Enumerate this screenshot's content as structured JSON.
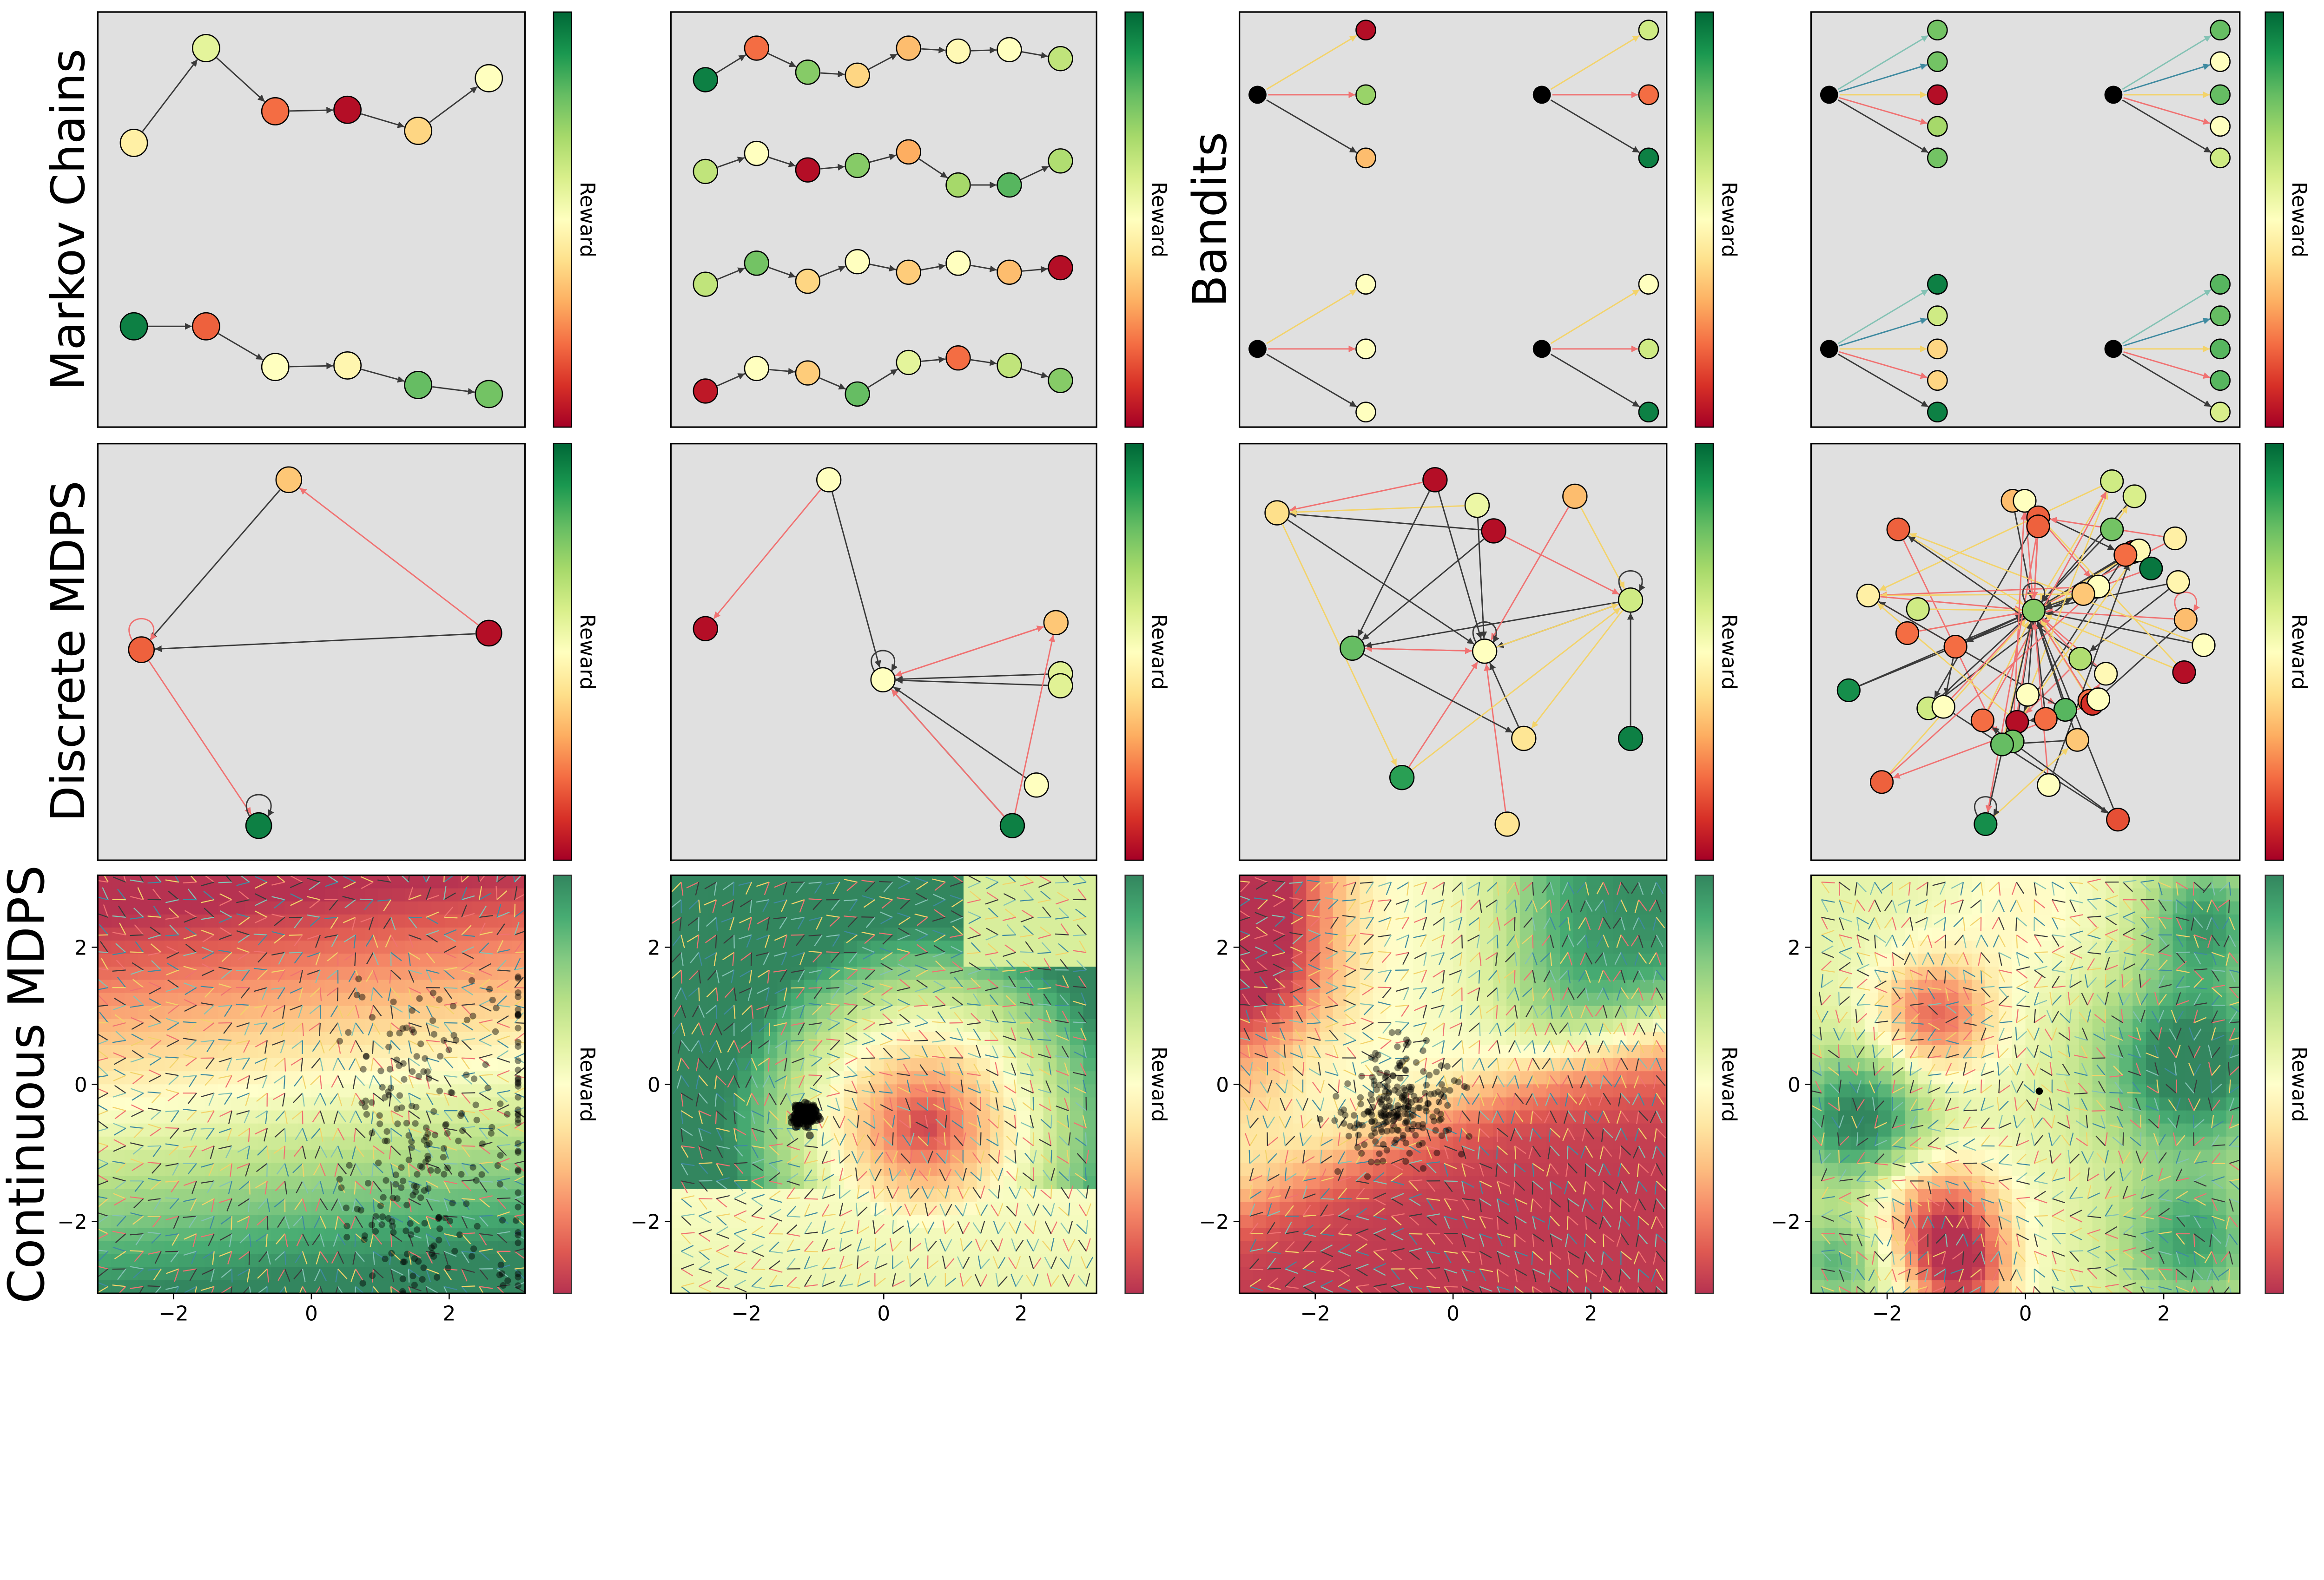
{
  "row_labels": {
    "markov": "Markov Chains",
    "bandits": "Bandits",
    "discrete": "Discrete MDPS",
    "continuous": "Continuous MDPS"
  },
  "colorbar_label": "Reward",
  "colormap": [
    "#a50026",
    "#d73027",
    "#f46d43",
    "#fdae61",
    "#fee08b",
    "#ffffbf",
    "#d9ef8b",
    "#a6d96a",
    "#66bd63",
    "#1a9850",
    "#006837"
  ],
  "colors": {
    "panel_background": "#e0e0e0",
    "edge_black": "#3a3a3a",
    "edge_red": "#f07272",
    "edge_yellow": "#f3d36a",
    "edge_teal": "#3f8aa0",
    "edge_teal_light": "#84c2b4",
    "bandit_state": "#000000"
  },
  "chart_data": [
    {
      "type": "graph",
      "panel": "markov-chains-1",
      "node_rewards": [
        [
          0.45,
          0.57,
          0.2,
          0.03,
          0.38,
          0.5
        ],
        [
          0.95,
          0.18,
          0.5,
          0.47,
          0.8,
          0.78
        ]
      ]
    },
    {
      "type": "graph",
      "panel": "markov-chains-2",
      "node_rewards": [
        [
          0.95,
          0.2,
          0.75,
          0.38,
          0.33,
          0.48,
          0.5,
          0.65
        ],
        [
          0.65,
          0.5,
          0.03,
          0.75,
          0.3,
          0.7,
          0.82,
          0.68
        ],
        [
          0.65,
          0.78,
          0.38,
          0.5,
          0.36,
          0.5,
          0.33,
          0.03
        ],
        [
          0.05,
          0.5,
          0.36,
          0.8,
          0.57,
          0.2,
          0.65,
          0.75
        ]
      ]
    },
    {
      "type": "graph",
      "panel": "bandits-1",
      "node_rewards": [
        [
          0.03,
          0.72,
          0.33
        ],
        [
          0.62,
          0.2,
          0.95
        ],
        [
          0.5,
          0.5,
          0.5
        ],
        [
          0.5,
          0.62,
          0.95
        ]
      ]
    },
    {
      "type": "graph",
      "panel": "bandits-2",
      "node_rewards": [
        [
          0.78,
          0.78,
          0.03,
          0.7,
          0.78
        ],
        [
          0.8,
          0.5,
          0.8,
          0.5,
          0.62
        ],
        [
          0.95,
          0.62,
          0.38,
          0.38,
          0.95
        ],
        [
          0.82,
          0.8,
          0.82,
          0.82,
          0.6
        ]
      ]
    },
    {
      "type": "graph",
      "panel": "discrete-mdp-1",
      "node_rewards": [
        0.35,
        0.18,
        0.03,
        0.95
      ]
    },
    {
      "type": "graph",
      "panel": "discrete-mdp-2",
      "node_rewards": [
        0.5,
        0.03,
        0.5,
        0.35,
        0.58,
        0.58,
        0.5,
        0.95
      ]
    },
    {
      "type": "graph",
      "panel": "discrete-mdp-3",
      "node_rewards": [
        0.4,
        0.03,
        0.55,
        0.03,
        0.33,
        0.62,
        0.8,
        0.5,
        0.42,
        0.88,
        0.95,
        0.42
      ]
    },
    {
      "type": "graph",
      "panel": "discrete-mdp-4",
      "node_rewards": [
        0.33,
        0.5,
        0.62,
        0.6,
        0.18,
        0.18,
        0.78,
        0.05,
        0.45,
        0.48,
        0.2,
        0.97,
        0.5,
        0.35,
        0.47,
        0.45,
        0.62,
        0.75,
        0.33,
        0.2,
        0.5,
        0.2,
        0.68,
        0.03,
        0.92,
        0.48,
        0.2,
        0.5,
        0.82,
        0.1,
        0.5,
        0.62,
        0.5,
        0.2,
        0.03,
        0.2,
        0.78,
        0.8,
        0.35,
        0.5,
        0.18,
        0.92,
        0.15,
        0.18
      ]
    },
    {
      "type": "heatmap",
      "panel": "continuous-mdp-1",
      "xlim": [
        -3.1,
        3.1
      ],
      "ylim": [
        -3.05,
        3.05
      ],
      "xticks": [
        "−2",
        "0",
        "2"
      ],
      "yticks": [
        "−2",
        "0",
        "2"
      ],
      "tick_values": [
        -2,
        0,
        2
      ],
      "description_of_reward": "red at top, pale yellow near y=0, green at bottom"
    },
    {
      "type": "heatmap",
      "panel": "continuous-mdp-2",
      "xlim": [
        -3.1,
        3.1
      ],
      "ylim": [
        -3.05,
        3.05
      ],
      "xticks": [
        "−2",
        "0",
        "2"
      ],
      "yticks": [
        "−2",
        "0",
        "2"
      ],
      "tick_values": [
        -2,
        0,
        2
      ]
    },
    {
      "type": "heatmap",
      "panel": "continuous-mdp-3",
      "xlim": [
        -3.1,
        3.1
      ],
      "ylim": [
        -3.05,
        3.05
      ],
      "xticks": [
        "−2",
        "0",
        "2"
      ],
      "yticks": [
        "−2",
        "0",
        "2"
      ],
      "tick_values": [
        -2,
        0,
        2
      ]
    },
    {
      "type": "heatmap",
      "panel": "continuous-mdp-4",
      "xlim": [
        -3.1,
        3.1
      ],
      "ylim": [
        -3.05,
        3.05
      ],
      "xticks": [
        "−2",
        "0",
        "2"
      ],
      "yticks": [
        "−2",
        "0",
        "2"
      ],
      "tick_values": [
        -2,
        0,
        2
      ]
    }
  ]
}
